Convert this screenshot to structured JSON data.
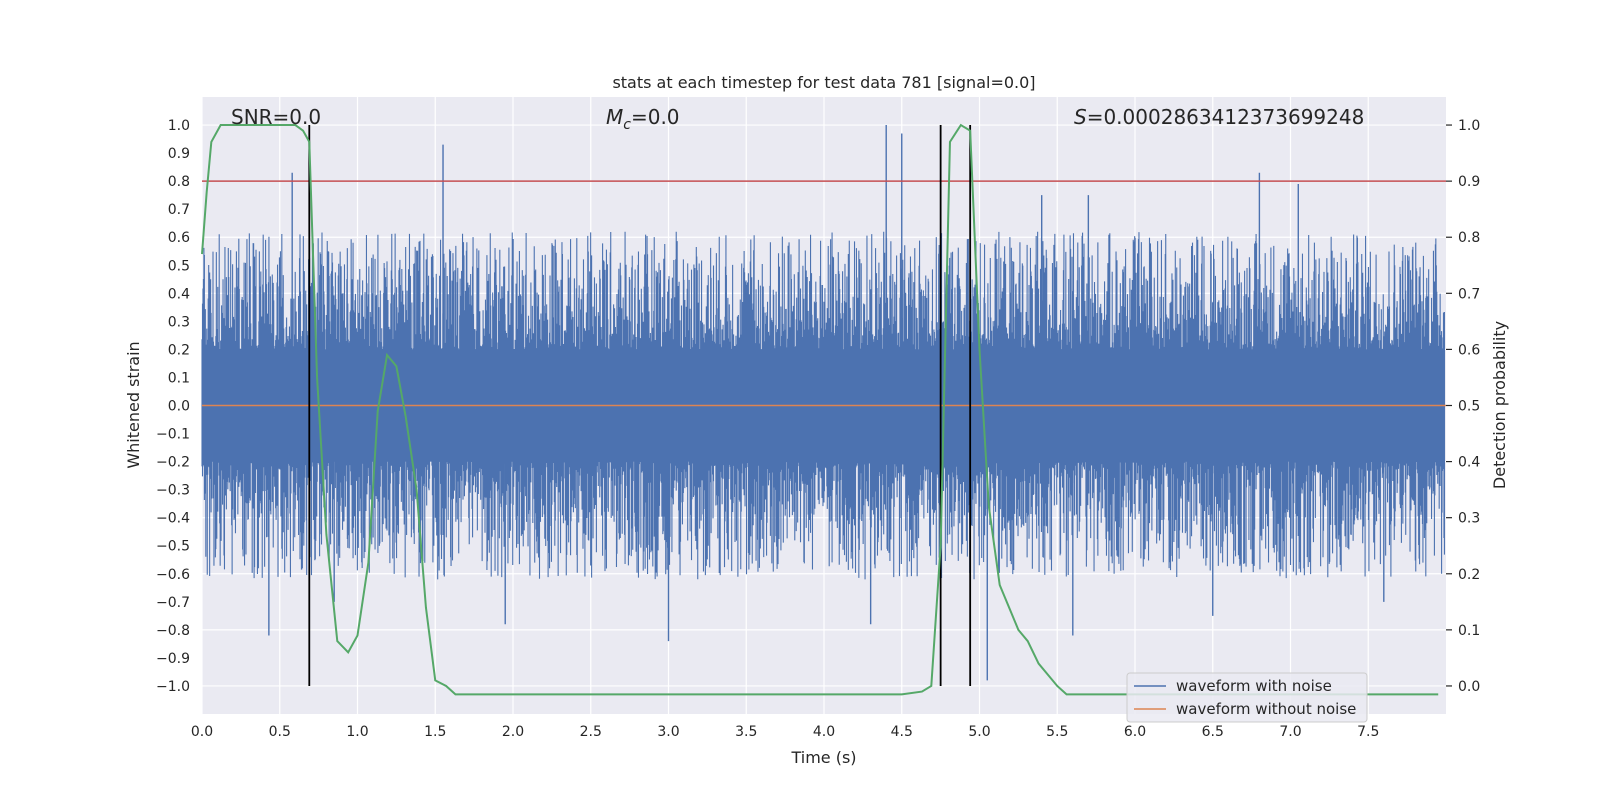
{
  "chart_data": {
    "type": "line",
    "title": "stats at each timestep for test data 781 [signal=0.0]",
    "xlabel": "Time (s)",
    "ylabel": "Whitened strain",
    "y2label": "Detection probability",
    "xlim": [
      0.0,
      8.0
    ],
    "ylim": [
      -1.1,
      1.1
    ],
    "y2lim": [
      -0.05,
      1.05
    ],
    "x_ticks": [
      0.0,
      0.5,
      1.0,
      1.5,
      2.0,
      2.5,
      3.0,
      3.5,
      4.0,
      4.5,
      5.0,
      5.5,
      6.0,
      6.5,
      7.0,
      7.5
    ],
    "y_ticks": [
      -1.0,
      -0.9,
      -0.8,
      -0.7,
      -0.6,
      -0.5,
      -0.4,
      -0.3,
      -0.2,
      -0.1,
      0.0,
      0.1,
      0.2,
      0.3,
      0.4,
      0.5,
      0.6,
      0.7,
      0.8,
      0.9,
      1.0
    ],
    "y2_ticks": [
      0.0,
      0.1,
      0.2,
      0.3,
      0.4,
      0.5,
      0.6,
      0.7,
      0.8,
      0.9,
      1.0
    ],
    "grid": true,
    "legend_position": "bottom-right",
    "annotations": {
      "snr_label": "SNR=0.0",
      "mc_label": "=0.0",
      "mc_symbol": "M",
      "mc_sub": "c",
      "s_symbol": "S",
      "s_label": "=0.0002863412373699248"
    },
    "threshold": {
      "value": 0.9,
      "axis": "y2",
      "color": "#c44e52"
    },
    "vertical_lines": [
      0.69,
      4.75,
      4.94
    ],
    "series": [
      {
        "name": "waveform with noise",
        "color": "#4c72b0",
        "axis": "y",
        "description": "dense noisy strain, amplitude mostly within ±0.5 with spikes to ±1.0",
        "peaks_positive": [
          [
            0.58,
            0.83
          ],
          [
            1.55,
            0.93
          ],
          [
            4.4,
            1.0
          ],
          [
            4.5,
            0.97
          ],
          [
            5.4,
            0.75
          ],
          [
            5.7,
            0.75
          ],
          [
            6.8,
            0.83
          ],
          [
            7.05,
            0.79
          ]
        ],
        "peaks_negative": [
          [
            0.43,
            -0.82
          ],
          [
            0.85,
            -0.7
          ],
          [
            1.95,
            -0.78
          ],
          [
            3.0,
            -0.84
          ],
          [
            4.3,
            -0.78
          ],
          [
            5.05,
            -0.98
          ],
          [
            5.6,
            -0.82
          ],
          [
            6.5,
            -0.75
          ],
          [
            7.6,
            -0.7
          ]
        ]
      },
      {
        "name": "waveform without noise",
        "color": "#dd8452",
        "axis": "y",
        "x": [
          0.0,
          8.0
        ],
        "values": [
          0.0,
          0.0
        ]
      },
      {
        "name": "detection probability",
        "color": "#55a868",
        "axis": "y2",
        "x": [
          0.0,
          0.03,
          0.06,
          0.12,
          0.2,
          0.3,
          0.5,
          0.6,
          0.65,
          0.69,
          0.74,
          0.8,
          0.87,
          0.94,
          1.0,
          1.07,
          1.13,
          1.19,
          1.25,
          1.31,
          1.38,
          1.44,
          1.5,
          1.57,
          1.63,
          2.0,
          3.0,
          4.0,
          4.5,
          4.63,
          4.69,
          4.75,
          4.81,
          4.88,
          4.94,
          5.0,
          5.06,
          5.13,
          5.19,
          5.25,
          5.31,
          5.38,
          5.44,
          5.5,
          5.56,
          6.0,
          7.0,
          7.95
        ],
        "values": [
          0.77,
          0.88,
          0.97,
          1.0,
          1.0,
          1.0,
          1.0,
          1.0,
          0.99,
          0.97,
          0.55,
          0.27,
          0.08,
          0.06,
          0.09,
          0.22,
          0.49,
          0.59,
          0.57,
          0.48,
          0.35,
          0.14,
          0.01,
          0.0,
          -0.015,
          -0.015,
          -0.015,
          -0.015,
          -0.015,
          -0.01,
          0.0,
          0.25,
          0.97,
          1.0,
          0.99,
          0.6,
          0.32,
          0.18,
          0.14,
          0.1,
          0.08,
          0.04,
          0.02,
          0.0,
          -0.015,
          -0.015,
          -0.015,
          -0.015
        ]
      }
    ]
  }
}
